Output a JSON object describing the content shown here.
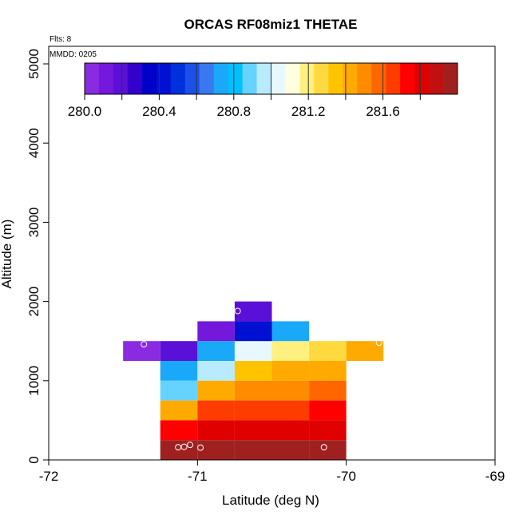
{
  "chart_data": {
    "type": "heatmap",
    "title": "ORCAS RF08miz1 THETAE",
    "xlabel": "Latitude (deg N)",
    "ylabel": "Altitude (m)",
    "xlim": [
      -72,
      -69
    ],
    "ylim": [
      0,
      5200
    ],
    "x_ticks": [
      -72,
      -71,
      -70,
      -69
    ],
    "y_ticks": [
      0,
      1000,
      2000,
      3000,
      4000,
      5000
    ],
    "annotations": {
      "flights": "Flts: 8",
      "mmdd": "MMDD: 0205"
    },
    "colorbar": {
      "min": 280.0,
      "max": 282.0,
      "tick_values": [
        280.0,
        280.4,
        280.8,
        281.2,
        281.6
      ],
      "tick_labels": [
        "280.0",
        "280.4",
        "280.8",
        "281.2",
        "281.6"
      ],
      "colors": [
        "#8a2be2",
        "#7418dc",
        "#5a10d6",
        "#3400cc",
        "#0000c8",
        "#0010d0",
        "#0030dc",
        "#1a50e8",
        "#3a78f0",
        "#1aa8f8",
        "#00bfff",
        "#66d3ff",
        "#b9ebff",
        "#e8f8ff",
        "#ffffe0",
        "#fff080",
        "#ffd940",
        "#ffc400",
        "#ffaa00",
        "#ff8c00",
        "#ff6600",
        "#ff3c00",
        "#ff0000",
        "#e00000",
        "#c01010",
        "#a02020"
      ]
    },
    "cells": [
      {
        "lat": -71.375,
        "alt": 1375,
        "value": 280.02
      },
      {
        "lat": -71.125,
        "alt": 1375,
        "value": 280.22
      },
      {
        "lat": -70.875,
        "alt": 1375,
        "value": 280.72
      },
      {
        "lat": -70.625,
        "alt": 1375,
        "value": 281.05
      },
      {
        "lat": -70.375,
        "alt": 1375,
        "value": 281.18
      },
      {
        "lat": -70.125,
        "alt": 1375,
        "value": 281.3
      },
      {
        "lat": -69.875,
        "alt": 1375,
        "value": 281.4
      },
      {
        "lat": -70.875,
        "alt": 1625,
        "value": 280.12
      },
      {
        "lat": -70.625,
        "alt": 1625,
        "value": 280.45
      },
      {
        "lat": -70.375,
        "alt": 1625,
        "value": 280.72
      },
      {
        "lat": -70.625,
        "alt": 1875,
        "value": 280.17
      },
      {
        "lat": -71.125,
        "alt": 1125,
        "value": 280.72
      },
      {
        "lat": -70.875,
        "alt": 1125,
        "value": 280.95
      },
      {
        "lat": -70.625,
        "alt": 1125,
        "value": 281.33
      },
      {
        "lat": -70.375,
        "alt": 1125,
        "value": 281.4
      },
      {
        "lat": -70.125,
        "alt": 1125,
        "value": 281.46
      },
      {
        "lat": -71.125,
        "alt": 875,
        "value": 280.9
      },
      {
        "lat": -70.875,
        "alt": 875,
        "value": 281.46
      },
      {
        "lat": -70.625,
        "alt": 875,
        "value": 281.5
      },
      {
        "lat": -70.375,
        "alt": 875,
        "value": 281.5
      },
      {
        "lat": -70.125,
        "alt": 875,
        "value": 281.56
      },
      {
        "lat": -71.125,
        "alt": 625,
        "value": 281.4
      },
      {
        "lat": -70.875,
        "alt": 625,
        "value": 281.67
      },
      {
        "lat": -70.625,
        "alt": 625,
        "value": 281.67
      },
      {
        "lat": -70.375,
        "alt": 625,
        "value": 281.65
      },
      {
        "lat": -70.125,
        "alt": 625,
        "value": 281.73
      },
      {
        "lat": -71.125,
        "alt": 375,
        "value": 281.7
      },
      {
        "lat": -70.875,
        "alt": 375,
        "value": 281.82
      },
      {
        "lat": -70.625,
        "alt": 375,
        "value": 281.82
      },
      {
        "lat": -70.375,
        "alt": 375,
        "value": 281.83
      },
      {
        "lat": -70.125,
        "alt": 375,
        "value": 281.78
      },
      {
        "lat": -71.125,
        "alt": 125,
        "value": 281.98
      },
      {
        "lat": -70.875,
        "alt": 125,
        "value": 281.98
      },
      {
        "lat": -70.625,
        "alt": 125,
        "value": 281.98
      },
      {
        "lat": -70.375,
        "alt": 125,
        "value": 281.98
      },
      {
        "lat": -70.125,
        "alt": 125,
        "value": 281.98
      }
    ],
    "cell_size": {
      "lat": 0.25,
      "alt": 250
    },
    "flight_points": [
      {
        "lat": -71.13,
        "alt": 160
      },
      {
        "lat": -71.09,
        "alt": 165
      },
      {
        "lat": -71.05,
        "alt": 190
      },
      {
        "lat": -70.98,
        "alt": 155
      },
      {
        "lat": -70.15,
        "alt": 160
      },
      {
        "lat": -70.73,
        "alt": 1880
      },
      {
        "lat": -71.36,
        "alt": 1460
      },
      {
        "lat": -69.78,
        "alt": 1480
      }
    ]
  }
}
